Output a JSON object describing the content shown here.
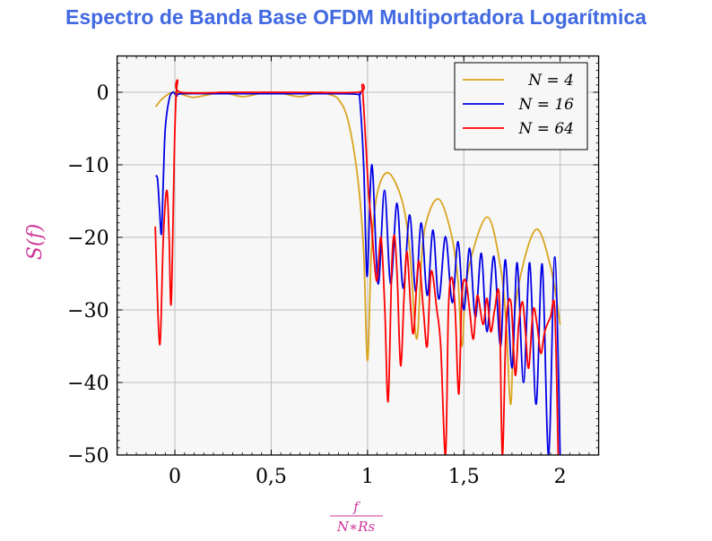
{
  "chart_data": {
    "type": "line",
    "title": "Espectro de Banda Base OFDM Multiportadora Logarítmica",
    "title_color": "#4169E1",
    "xlabel_num": "f",
    "xlabel_den": "N∗Rs",
    "ylabel": "S(f)",
    "label_color": "#CC3399",
    "xlim": [
      -0.3,
      2.2
    ],
    "ylim": [
      -50,
      5
    ],
    "grid": true,
    "legend_position": "top-right",
    "x_ticks": [
      0,
      0.5,
      1,
      1.5,
      2
    ],
    "x_tick_labels": [
      "0",
      "0,5",
      "1",
      "1,5",
      "2"
    ],
    "y_ticks": [
      0,
      -10,
      -20,
      -30,
      -40,
      -50
    ],
    "y_tick_labels": [
      "0",
      "−10",
      "−20",
      "−30",
      "−40",
      "−50"
    ],
    "series": [
      {
        "name": "N = 4",
        "color": "#DAA520",
        "x": [
          -0.1,
          -0.07,
          -0.03,
          0,
          0.05,
          0.1,
          0.18,
          0.25,
          0.35,
          0.45,
          0.5,
          0.55,
          0.65,
          0.75,
          0.8,
          0.85,
          0.9,
          0.95,
          0.98,
          1.0,
          1.02,
          1.05,
          1.107,
          1.18,
          1.22,
          1.256,
          1.29,
          1.363,
          1.43,
          1.47,
          1.49,
          1.52,
          1.62,
          1.69,
          1.72,
          1.744,
          1.77,
          1.87,
          1.95,
          2.0
        ],
        "y": [
          -2,
          -1,
          -0.2,
          0,
          -0.4,
          -0.7,
          -0.3,
          0,
          -0.6,
          -0.1,
          0,
          -0.1,
          -0.6,
          0,
          -0.3,
          -1,
          -4,
          -12,
          -22,
          -37,
          -22,
          -14,
          -11.1,
          -15,
          -22,
          -34,
          -20,
          -14.7,
          -19,
          -26,
          -35,
          -25,
          -17.2,
          -24,
          -32,
          -43,
          -29,
          -19,
          -24,
          -32
        ]
      },
      {
        "name": "N = 16",
        "color": "#0000E6",
        "x": [
          -0.1,
          -0.09,
          -0.08,
          -0.07,
          -0.06,
          -0.05,
          -0.03,
          -0.01,
          0.01,
          0.03,
          0.2,
          0.4,
          0.6,
          0.8,
          0.95,
          0.96,
          0.98,
          0.99,
          1.0,
          1.023,
          1.055,
          1.088,
          1.12,
          1.153,
          1.185,
          1.219,
          1.25,
          1.279,
          1.31,
          1.34,
          1.37,
          1.405,
          1.44,
          1.47,
          1.5,
          1.53,
          1.56,
          1.591,
          1.62,
          1.656,
          1.69,
          1.716,
          1.75,
          1.777,
          1.81,
          1.842,
          1.875,
          1.907,
          1.94,
          1.972,
          2.0
        ],
        "y": [
          -11.5,
          -12,
          -16,
          -19.5,
          -12,
          -5,
          -1,
          0,
          -0.5,
          -0.2,
          -0.2,
          -0.2,
          -0.2,
          -0.2,
          -0.3,
          -1,
          -10,
          -20,
          -25,
          -10,
          -26.4,
          -13.5,
          -26.4,
          -15.3,
          -27,
          -16.9,
          -27.5,
          -18,
          -28,
          -19,
          -28.5,
          -19.9,
          -29,
          -20.6,
          -30,
          -21.5,
          -31,
          -22.2,
          -33,
          -22.6,
          -35,
          -23.1,
          -38,
          -23.5,
          -40,
          -23.5,
          -43,
          -23.7,
          -50,
          -22.7,
          -50
        ]
      },
      {
        "name": "N = 64",
        "color": "#FF0000",
        "x": [
          -0.102,
          -0.079,
          -0.06,
          -0.042,
          -0.03,
          -0.019,
          0,
          0.014,
          0.03,
          0.3,
          0.6,
          0.95,
          0.972,
          0.991,
          1.005,
          1.02,
          1.047,
          1.07,
          1.09,
          1.107,
          1.126,
          1.14,
          1.155,
          1.172,
          1.19,
          1.205,
          1.225,
          1.24,
          1.265,
          1.29,
          1.31,
          1.33,
          1.36,
          1.38,
          1.405,
          1.42,
          1.437,
          1.455,
          1.474,
          1.49,
          1.51,
          1.53,
          1.55,
          1.57,
          1.6,
          1.62,
          1.64,
          1.66,
          1.684,
          1.7,
          1.72,
          1.745,
          1.767,
          1.785,
          1.805,
          1.82,
          1.837,
          1.86,
          1.88,
          1.9,
          1.92,
          1.95,
          1.972,
          1.99
        ],
        "y": [
          -18.5,
          -34.8,
          -20,
          -13.5,
          -20,
          -28.9,
          -5,
          1.5,
          0,
          0,
          0,
          0,
          0.7,
          -7,
          -13.6,
          -18,
          -26,
          -20,
          -30,
          -42.6,
          -24,
          -19.8,
          -26,
          -37.7,
          -28,
          -22,
          -30,
          -33,
          -23.3,
          -30,
          -35,
          -24.7,
          -30,
          -35,
          -50,
          -30,
          -25.5,
          -30,
          -41.6,
          -28,
          -26,
          -30,
          -34,
          -28,
          -32,
          -28.4,
          -33,
          -30,
          -28.4,
          -50,
          -32,
          -29,
          -39,
          -32,
          -28.9,
          -33,
          -38,
          -30,
          -32,
          -36,
          -33,
          -31,
          -29.9,
          -50
        ]
      }
    ]
  }
}
